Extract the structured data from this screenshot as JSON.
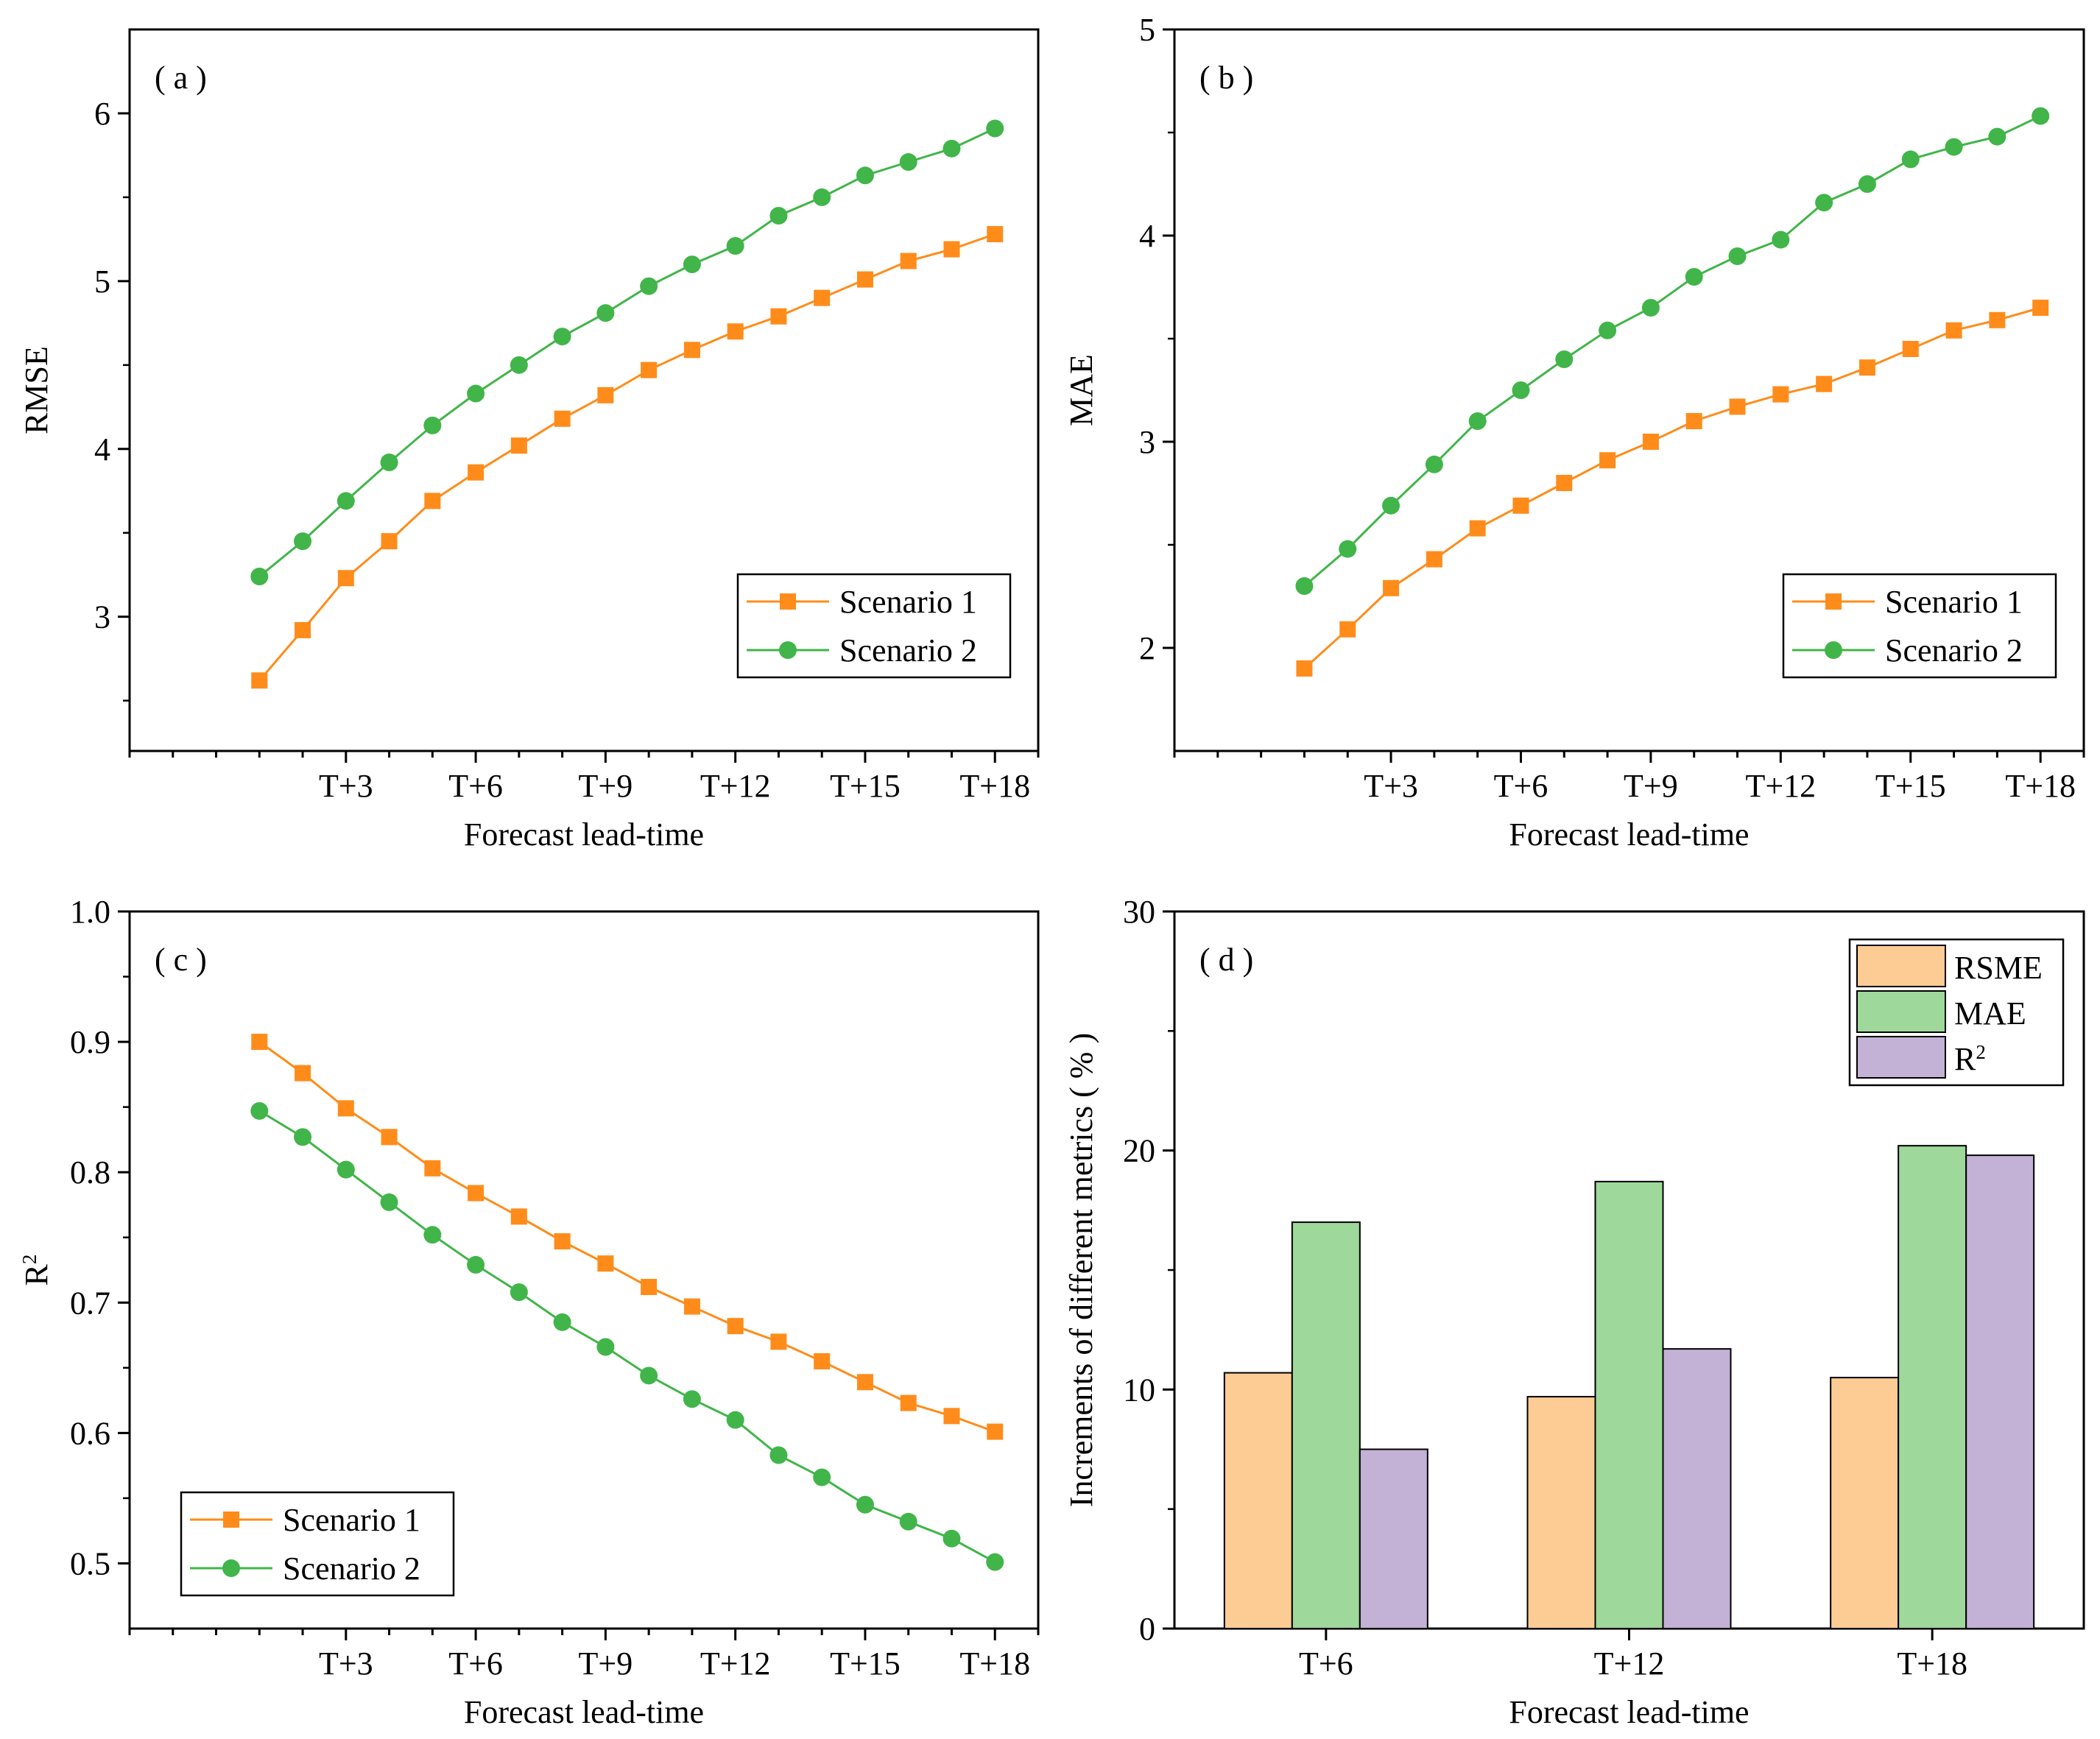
{
  "figure": {
    "x_label": "Forecast lead-time"
  },
  "colors": {
    "scenario1": "#ff8c1a",
    "scenario2": "#41b549",
    "bar_rmse": "#fdcc95",
    "bar_mae": "#9ed89a",
    "bar_r2": "#c3b1d6"
  },
  "chart_data": [
    {
      "type": "line",
      "panel": "( a )",
      "ylabel": "RMSE",
      "xlabel": "Forecast lead-time",
      "x": [
        1,
        2,
        3,
        4,
        5,
        6,
        7,
        8,
        9,
        10,
        11,
        12,
        13,
        14,
        15,
        16,
        17,
        18
      ],
      "xticks": [
        {
          "at": 3,
          "label": "T+3"
        },
        {
          "at": 6,
          "label": "T+6"
        },
        {
          "at": 9,
          "label": "T+9"
        },
        {
          "at": 12,
          "label": "T+12"
        },
        {
          "at": 15,
          "label": "T+15"
        },
        {
          "at": 18,
          "label": "T+18"
        }
      ],
      "xlim": [
        -2,
        19
      ],
      "ylim": [
        2.2,
        6.5
      ],
      "yticks": [
        3,
        4,
        5,
        6
      ],
      "yticklabels": [
        "3",
        "4",
        "5",
        "6"
      ],
      "yminor": [
        2.5,
        3.5,
        4.5,
        5.5
      ],
      "legend_position": "bottom-right",
      "series": [
        {
          "name": "Scenario 1",
          "marker": "square",
          "color_key": "scenario1",
          "values": [
            2.62,
            2.92,
            3.23,
            3.45,
            3.69,
            3.86,
            4.02,
            4.18,
            4.32,
            4.47,
            4.59,
            4.7,
            4.79,
            4.9,
            5.01,
            5.12,
            5.19,
            5.28
          ]
        },
        {
          "name": "Scenario 2",
          "marker": "circle",
          "color_key": "scenario2",
          "values": [
            3.24,
            3.45,
            3.69,
            3.92,
            4.14,
            4.33,
            4.5,
            4.67,
            4.81,
            4.97,
            5.1,
            5.21,
            5.39,
            5.5,
            5.63,
            5.71,
            5.79,
            5.91
          ]
        }
      ]
    },
    {
      "type": "line",
      "panel": "( b )",
      "ylabel": "MAE",
      "xlabel": "Forecast lead-time",
      "x": [
        1,
        2,
        3,
        4,
        5,
        6,
        7,
        8,
        9,
        10,
        11,
        12,
        13,
        14,
        15,
        16,
        17,
        18
      ],
      "xticks": [
        {
          "at": 3,
          "label": "T+3"
        },
        {
          "at": 6,
          "label": "T+6"
        },
        {
          "at": 9,
          "label": "T+9"
        },
        {
          "at": 12,
          "label": "T+12"
        },
        {
          "at": 15,
          "label": "T+15"
        },
        {
          "at": 18,
          "label": "T+18"
        }
      ],
      "xlim": [
        -2,
        19
      ],
      "ylim": [
        1.5,
        5.0
      ],
      "yticks": [
        2,
        3,
        4,
        5
      ],
      "yticklabels": [
        "2",
        "3",
        "4",
        "5"
      ],
      "yminor": [
        2.5,
        3.5,
        4.5
      ],
      "legend_position": "bottom-right",
      "series": [
        {
          "name": "Scenario 1",
          "marker": "square",
          "color_key": "scenario1",
          "values": [
            1.9,
            2.09,
            2.29,
            2.43,
            2.58,
            2.69,
            2.8,
            2.91,
            3.0,
            3.1,
            3.17,
            3.23,
            3.28,
            3.36,
            3.45,
            3.54,
            3.59,
            3.65
          ]
        },
        {
          "name": "Scenario 2",
          "marker": "circle",
          "color_key": "scenario2",
          "values": [
            2.3,
            2.48,
            2.69,
            2.89,
            3.1,
            3.25,
            3.4,
            3.54,
            3.65,
            3.8,
            3.9,
            3.98,
            4.16,
            4.25,
            4.37,
            4.43,
            4.48,
            4.58
          ]
        }
      ]
    },
    {
      "type": "line",
      "panel": "( c )",
      "ylabel": "R²",
      "xlabel": "Forecast lead-time",
      "x": [
        1,
        2,
        3,
        4,
        5,
        6,
        7,
        8,
        9,
        10,
        11,
        12,
        13,
        14,
        15,
        16,
        17,
        18
      ],
      "xticks": [
        {
          "at": 3,
          "label": "T+3"
        },
        {
          "at": 6,
          "label": "T+6"
        },
        {
          "at": 9,
          "label": "T+9"
        },
        {
          "at": 12,
          "label": "T+12"
        },
        {
          "at": 15,
          "label": "T+15"
        },
        {
          "at": 18,
          "label": "T+18"
        }
      ],
      "xlim": [
        -2,
        19
      ],
      "ylim": [
        0.45,
        1.0
      ],
      "yticks": [
        0.5,
        0.6,
        0.7,
        0.8,
        0.9,
        1.0
      ],
      "yticklabels": [
        "0.5",
        "0.6",
        "0.7",
        "0.8",
        "0.9",
        "1.0"
      ],
      "yminor": [
        0.55,
        0.65,
        0.75,
        0.85,
        0.95
      ],
      "legend_position": "bottom-left",
      "series": [
        {
          "name": "Scenario 1",
          "marker": "square",
          "color_key": "scenario1",
          "values": [
            0.9,
            0.876,
            0.849,
            0.827,
            0.803,
            0.784,
            0.766,
            0.747,
            0.73,
            0.712,
            0.697,
            0.682,
            0.67,
            0.655,
            0.639,
            0.623,
            0.613,
            0.601
          ]
        },
        {
          "name": "Scenario 2",
          "marker": "circle",
          "color_key": "scenario2",
          "values": [
            0.847,
            0.827,
            0.802,
            0.777,
            0.752,
            0.729,
            0.708,
            0.685,
            0.666,
            0.644,
            0.626,
            0.61,
            0.583,
            0.566,
            0.545,
            0.532,
            0.519,
            0.501
          ]
        }
      ]
    },
    {
      "type": "bar",
      "panel": "( d )",
      "ylabel": "Increments of different metrics ( % )",
      "xlabel": "Forecast lead-time",
      "categories": [
        "T+6",
        "T+12",
        "T+18"
      ],
      "ylim": [
        0,
        30
      ],
      "yticks": [
        0,
        10,
        20,
        30
      ],
      "yticklabels": [
        "0",
        "10",
        "20",
        "30"
      ],
      "yminor": [
        5,
        15,
        25
      ],
      "legend_position": "top-right",
      "series": [
        {
          "name": "RSME",
          "color_key": "bar_rmse",
          "values": [
            10.7,
            9.7,
            10.5
          ]
        },
        {
          "name": "MAE",
          "color_key": "bar_mae",
          "values": [
            17.0,
            18.7,
            20.2
          ]
        },
        {
          "name": "R²",
          "color_key": "bar_r2",
          "values": [
            7.5,
            11.7,
            19.8
          ]
        }
      ]
    }
  ]
}
